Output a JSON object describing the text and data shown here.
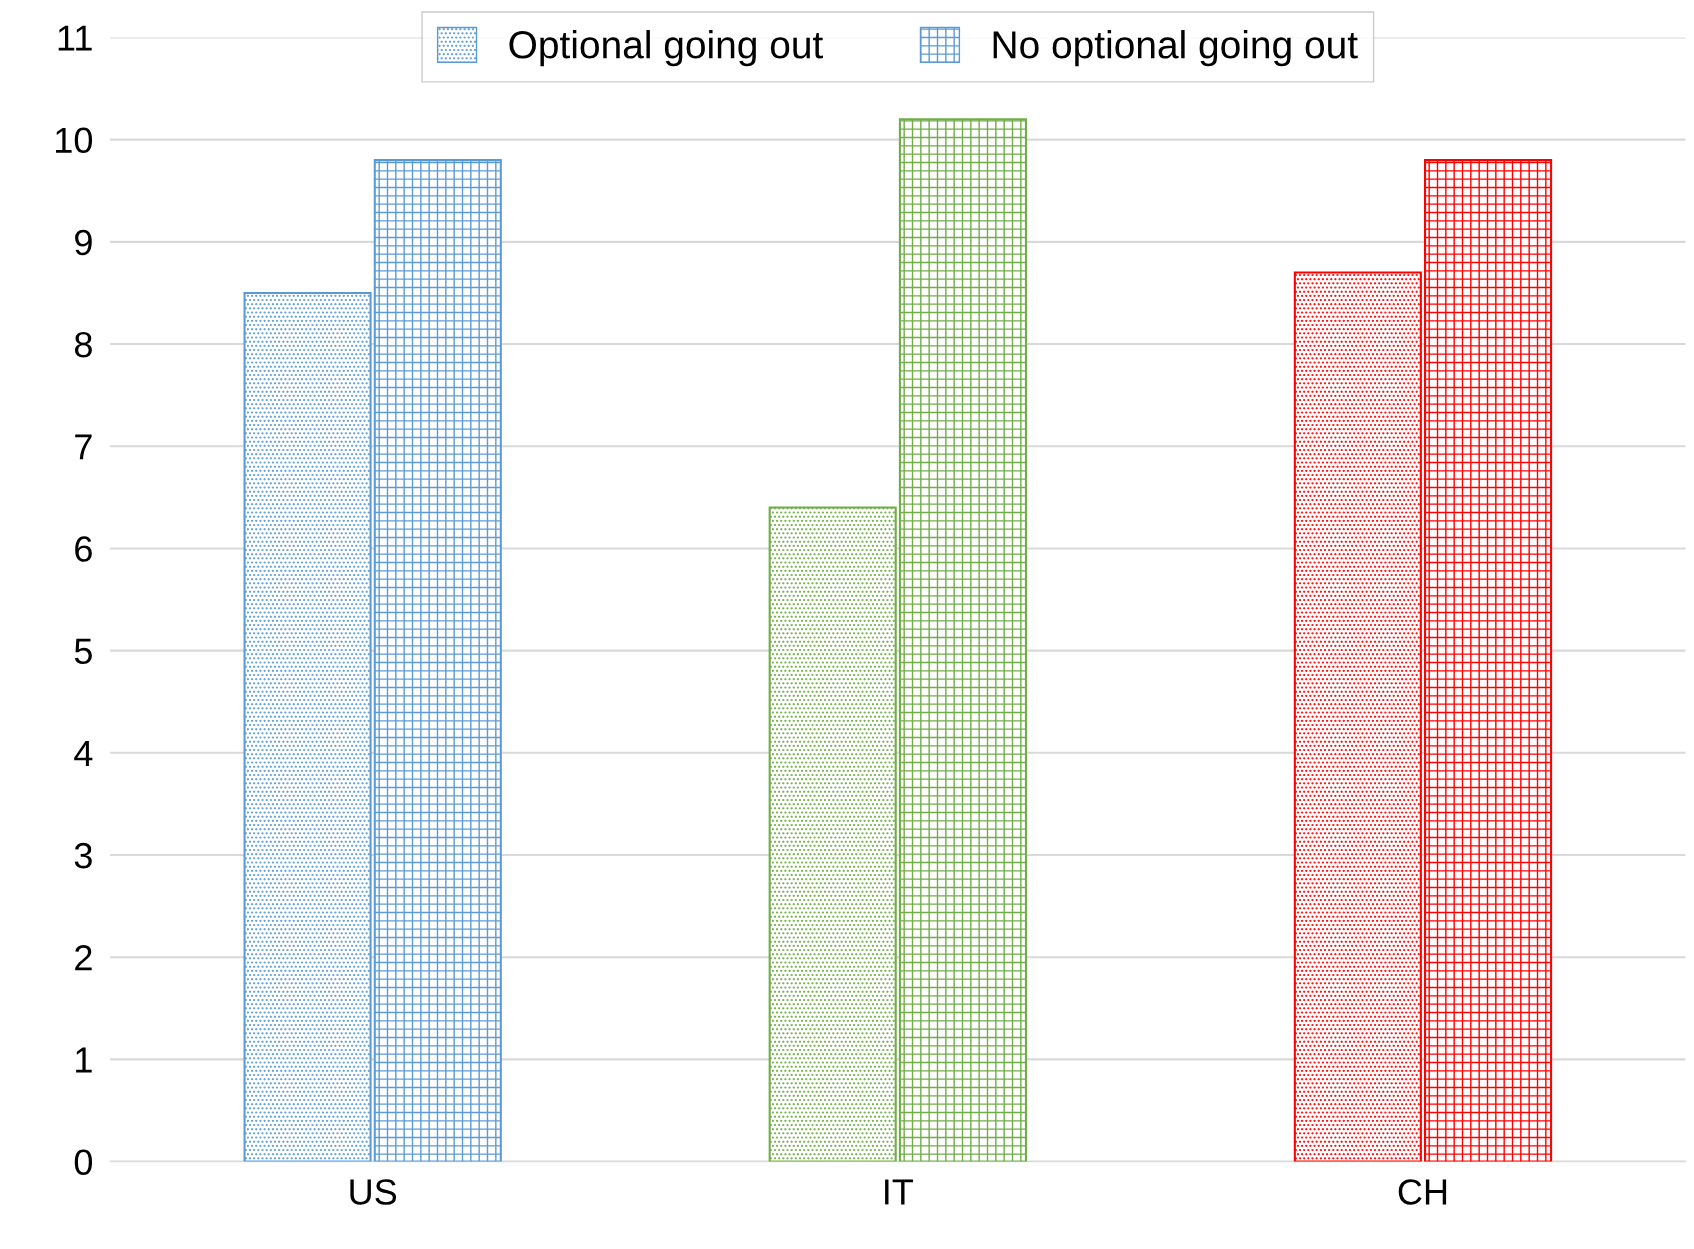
{
  "chart_data": {
    "type": "bar",
    "categories": [
      "US",
      "IT",
      "CH"
    ],
    "series": [
      {
        "name": "Optional going out",
        "colors": [
          "#5b9bd5",
          "#70ad47",
          "#ff0000"
        ],
        "values": [
          8.5,
          6.4,
          8.7
        ]
      },
      {
        "name": "No optional going out",
        "colors": [
          "#5b9bd5",
          "#70ad47",
          "#ff0000"
        ],
        "values": [
          9.8,
          10.2,
          9.8
        ]
      }
    ],
    "ylim": [
      0,
      11
    ],
    "yticks": [
      0,
      1,
      2,
      3,
      4,
      5,
      6,
      7,
      8,
      9,
      10,
      11
    ],
    "grid": "y",
    "legend": "top"
  }
}
